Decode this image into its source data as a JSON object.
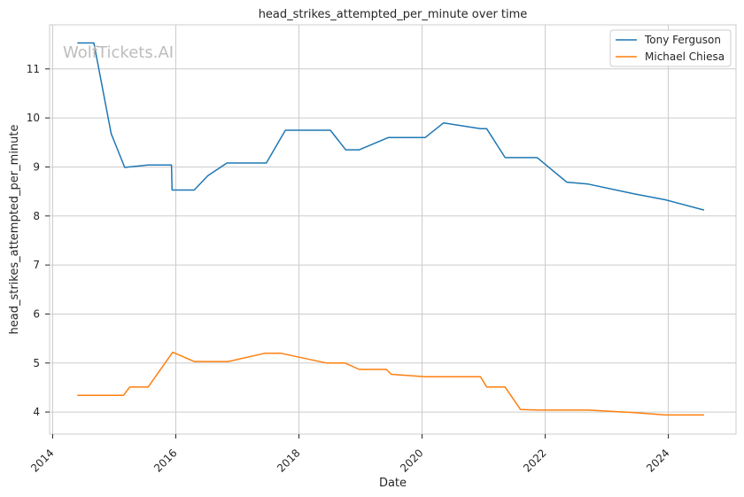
{
  "chart_data": {
    "type": "line",
    "title": "head_strikes_attempted_per_minute over time",
    "xlabel": "Date",
    "ylabel": "head_strikes_attempted_per_minute",
    "watermark": "WolfTickets.AI",
    "x_ticks": [
      "2014",
      "2016",
      "2018",
      "2020",
      "2022",
      "2024"
    ],
    "y_ticks": [
      "4",
      "5",
      "6",
      "7",
      "8",
      "9",
      "10",
      "11"
    ],
    "xlim": [
      2013.95,
      2025.1
    ],
    "ylim": [
      3.55,
      11.9
    ],
    "grid": true,
    "legend_position": "top-right",
    "series": [
      {
        "name": "Tony Ferguson",
        "color": "#1f77b4",
        "points": [
          [
            2014.4,
            11.53
          ],
          [
            2014.67,
            11.53
          ],
          [
            2014.95,
            9.68
          ],
          [
            2015.17,
            8.99
          ],
          [
            2015.55,
            9.04
          ],
          [
            2015.93,
            9.04
          ],
          [
            2015.94,
            8.53
          ],
          [
            2016.3,
            8.53
          ],
          [
            2016.52,
            8.82
          ],
          [
            2016.83,
            9.08
          ],
          [
            2017.47,
            9.08
          ],
          [
            2017.78,
            9.75
          ],
          [
            2018.51,
            9.75
          ],
          [
            2018.76,
            9.35
          ],
          [
            2018.98,
            9.35
          ],
          [
            2019.45,
            9.6
          ],
          [
            2020.05,
            9.6
          ],
          [
            2020.35,
            9.9
          ],
          [
            2020.95,
            9.78
          ],
          [
            2021.05,
            9.78
          ],
          [
            2021.35,
            9.19
          ],
          [
            2021.87,
            9.19
          ],
          [
            2022.35,
            8.69
          ],
          [
            2022.7,
            8.65
          ],
          [
            2023.45,
            8.45
          ],
          [
            2023.95,
            8.33
          ],
          [
            2024.58,
            8.12
          ]
        ]
      },
      {
        "name": "Michael Chiesa",
        "color": "#ff7f0e",
        "points": [
          [
            2014.4,
            4.34
          ],
          [
            2015.15,
            4.34
          ],
          [
            2015.25,
            4.51
          ],
          [
            2015.55,
            4.51
          ],
          [
            2015.95,
            5.22
          ],
          [
            2016.3,
            5.03
          ],
          [
            2016.85,
            5.03
          ],
          [
            2017.45,
            5.2
          ],
          [
            2017.7,
            5.2
          ],
          [
            2018.45,
            5.0
          ],
          [
            2018.75,
            5.0
          ],
          [
            2018.98,
            4.87
          ],
          [
            2019.42,
            4.87
          ],
          [
            2019.5,
            4.77
          ],
          [
            2020.05,
            4.72
          ],
          [
            2020.95,
            4.72
          ],
          [
            2021.05,
            4.51
          ],
          [
            2021.35,
            4.51
          ],
          [
            2021.6,
            4.05
          ],
          [
            2021.9,
            4.04
          ],
          [
            2022.7,
            4.04
          ],
          [
            2023.45,
            3.99
          ],
          [
            2023.95,
            3.94
          ],
          [
            2024.58,
            3.94
          ]
        ]
      }
    ]
  }
}
